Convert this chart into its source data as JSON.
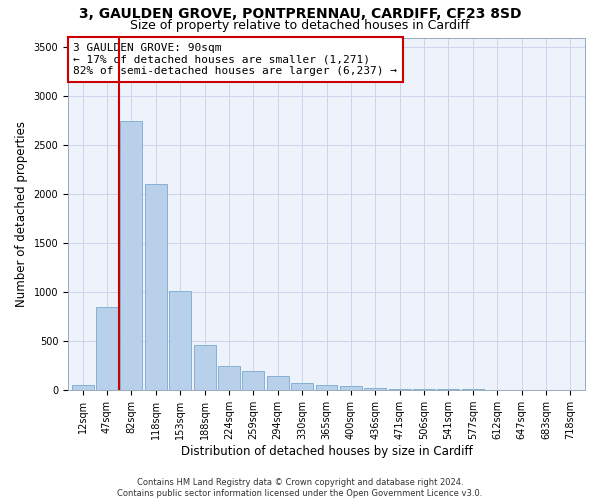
{
  "title": "3, GAULDEN GROVE, PONTPRENNAU, CARDIFF, CF23 8SD",
  "subtitle": "Size of property relative to detached houses in Cardiff",
  "xlabel": "Distribution of detached houses by size in Cardiff",
  "ylabel": "Number of detached properties",
  "bar_labels": [
    "12sqm",
    "47sqm",
    "82sqm",
    "118sqm",
    "153sqm",
    "188sqm",
    "224sqm",
    "259sqm",
    "294sqm",
    "330sqm",
    "365sqm",
    "400sqm",
    "436sqm",
    "471sqm",
    "506sqm",
    "541sqm",
    "577sqm",
    "612sqm",
    "647sqm",
    "683sqm",
    "718sqm"
  ],
  "bar_values": [
    50,
    850,
    2750,
    2100,
    1010,
    460,
    245,
    195,
    145,
    65,
    50,
    35,
    15,
    10,
    7,
    5,
    3,
    2,
    1,
    1,
    1
  ],
  "bar_color": "#b8d0ea",
  "bar_edgecolor": "#7aaad0",
  "background_color": "#eef2fb",
  "grid_color": "#ccd4ee",
  "vline_x": 1.5,
  "vline_color": "#cc0000",
  "annotation_text": "3 GAULDEN GROVE: 90sqm\n← 17% of detached houses are smaller (1,271)\n82% of semi-detached houses are larger (6,237) →",
  "annotation_box_edgecolor": "#cc0000",
  "ylim": [
    0,
    3600
  ],
  "yticks": [
    0,
    500,
    1000,
    1500,
    2000,
    2500,
    3000,
    3500
  ],
  "footer": "Contains HM Land Registry data © Crown copyright and database right 2024.\nContains public sector information licensed under the Open Government Licence v3.0.",
  "title_fontsize": 10,
  "subtitle_fontsize": 9,
  "axis_label_fontsize": 8.5,
  "tick_fontsize": 7,
  "annotation_fontsize": 8,
  "footer_fontsize": 6
}
